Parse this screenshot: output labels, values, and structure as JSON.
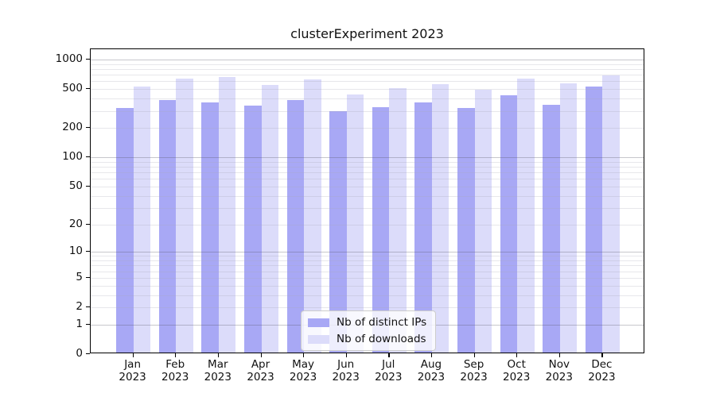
{
  "chart_data": {
    "type": "bar",
    "title": "clusterExperiment 2023",
    "categories": [
      "Jan",
      "Feb",
      "Mar",
      "Apr",
      "May",
      "Jun",
      "Jul",
      "Aug",
      "Sep",
      "Oct",
      "Nov",
      "Dec"
    ],
    "category_year": "2023",
    "series": [
      {
        "name": "Nb of distinct IPs",
        "color": "#a8a8f5",
        "values": [
          310,
          370,
          350,
          325,
          370,
          285,
          315,
          355,
          310,
          415,
          330,
          515
        ]
      },
      {
        "name": "Nb of downloads",
        "color": "#dcdcfa",
        "values": [
          510,
          620,
          640,
          535,
          610,
          425,
          490,
          540,
          475,
          615,
          555,
          670
        ]
      }
    ],
    "yscale": "log1p",
    "y_ticks": [
      1000,
      500,
      200,
      100,
      50,
      20,
      10,
      5,
      2,
      1,
      0
    ],
    "ylim": [
      0,
      1270
    ],
    "grid": "both",
    "legend_position": "lower-center",
    "xlabel": "",
    "ylabel": ""
  }
}
